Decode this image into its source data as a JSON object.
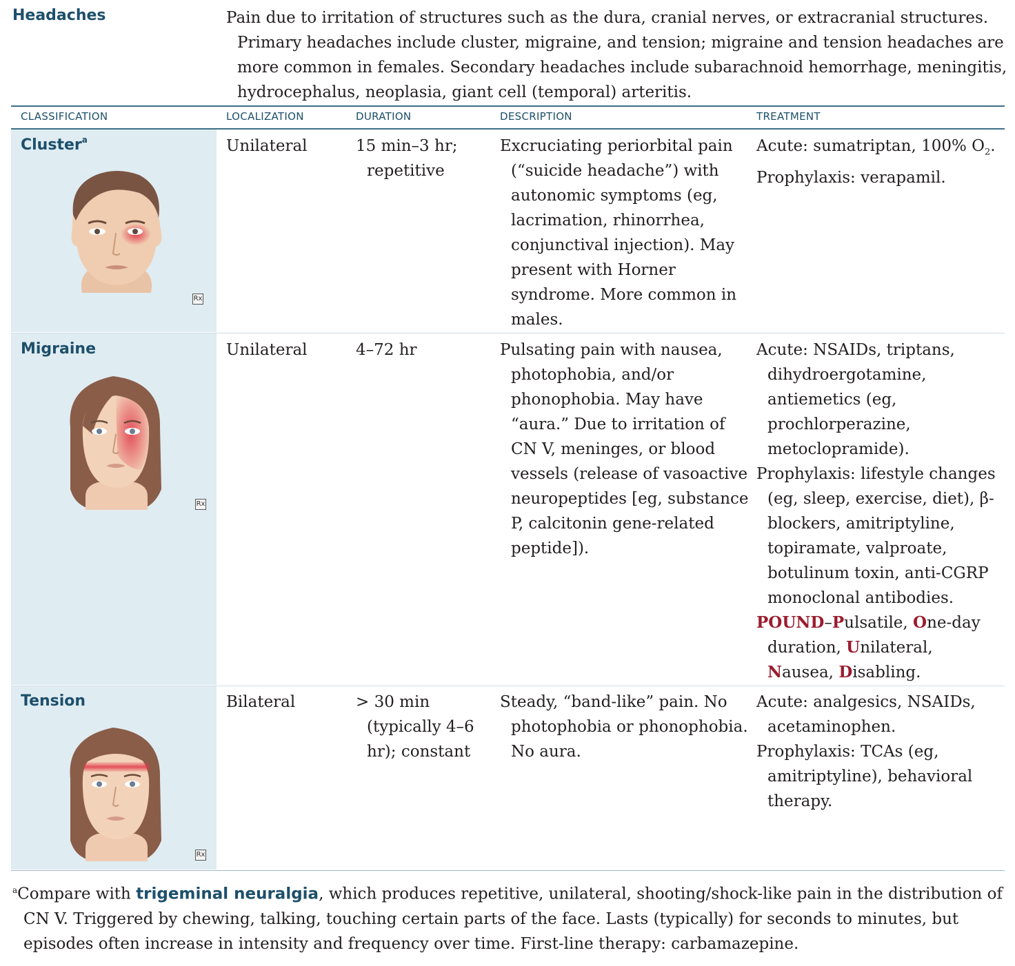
{
  "title": "Headaches",
  "intro": "Pain due to irritation of structures such as the dura, cranial nerves, or extracranial structures. Primary headaches include cluster, migraine, and tension; migraine and tension headaches are more common in females. Secondary headaches include subarachnoid hemorrhage, meningitis, hydrocephalus, neoplasia, giant cell (temporal) arteritis.",
  "headers": {
    "classification": "CLASSIFICATION",
    "localization": "LOCALIZATION",
    "duration": "DURATION",
    "description": "DESCRIPTION",
    "treatment": "TREATMENT"
  },
  "rows": [
    {
      "name": "Cluster",
      "name_sup": "a",
      "localization": "Unilateral",
      "duration": "15 min–3 hr; repetitive",
      "description": "Excruciating periorbital pain (“suicide headache”) with autonomic symptoms (eg, lacrimation, rhinorrhea, conjunctival injection). May present with Horner syndrome. More common in males.",
      "treatment_acute": "Acute: sumatriptan, 100% O",
      "treatment_acute_sub": "2",
      "treatment_acute_end": ".",
      "treatment_prophylaxis": "Prophylaxis: verapamil.",
      "rx": "Rx"
    },
    {
      "name": "Migraine",
      "localization": "Unilateral",
      "duration": "4–72 hr",
      "description": "Pulsating pain with nausea, photophobia, and/or phonophobia. May have “aura.” Due to irritation of CN V, meninges, or blood vessels (release of vasoactive neuropeptides [eg, substance P, calcitonin gene-related peptide]).",
      "treatment_acute": "Acute: NSAIDs, triptans, dihydroergotamine, antiemetics (eg, prochlorperazine, metoclopramide).",
      "treatment_prophylaxis": "Prophylaxis: lifestyle changes (eg, sleep, exercise, diet), β-blockers, amitriptyline, topiramate, valproate, botulinum toxin, anti-CGRP monoclonal antibodies.",
      "mnemonic": {
        "word": "POUND",
        "dash": "–",
        "p_letter": "P",
        "p_rest": "ulsatile, ",
        "o_letter": "O",
        "o_rest": "ne-day duration, ",
        "u_letter": "U",
        "u_rest": "nilateral, ",
        "n_letter": "N",
        "n_rest": "ausea, ",
        "d_letter": "D",
        "d_rest": "isabling."
      },
      "rx": "Rx"
    },
    {
      "name": "Tension",
      "localization": "Bilateral",
      "duration": "> 30 min (typically 4–6 hr); constant",
      "description": "Steady, “band-like” pain. No photophobia or phonophobia. No aura.",
      "treatment_acute": "Acute: analgesics, NSAIDs, acetaminophen.",
      "treatment_prophylaxis": "Prophylaxis: TCAs (eg, amitriptyline), behavioral therapy.",
      "rx": "Rx"
    }
  ],
  "footnote": {
    "marker": "a",
    "lead": "Compare with ",
    "term": "trigeminal neuralgia",
    "text": ", which produces repetitive, unilateral, shooting/shock-like pain in the distribution of CN V. Triggered by chewing, talking, touching certain parts of the face. Lasts (typically) for seconds to minutes, but episodes often increase in intensity and frequency over time. First-line therapy: carbamazepine."
  },
  "colors": {
    "heading": "#1d4f6b",
    "panel": "#dfecf2",
    "mnemonic": "#9b1c2e",
    "pain": "#e0384a"
  }
}
